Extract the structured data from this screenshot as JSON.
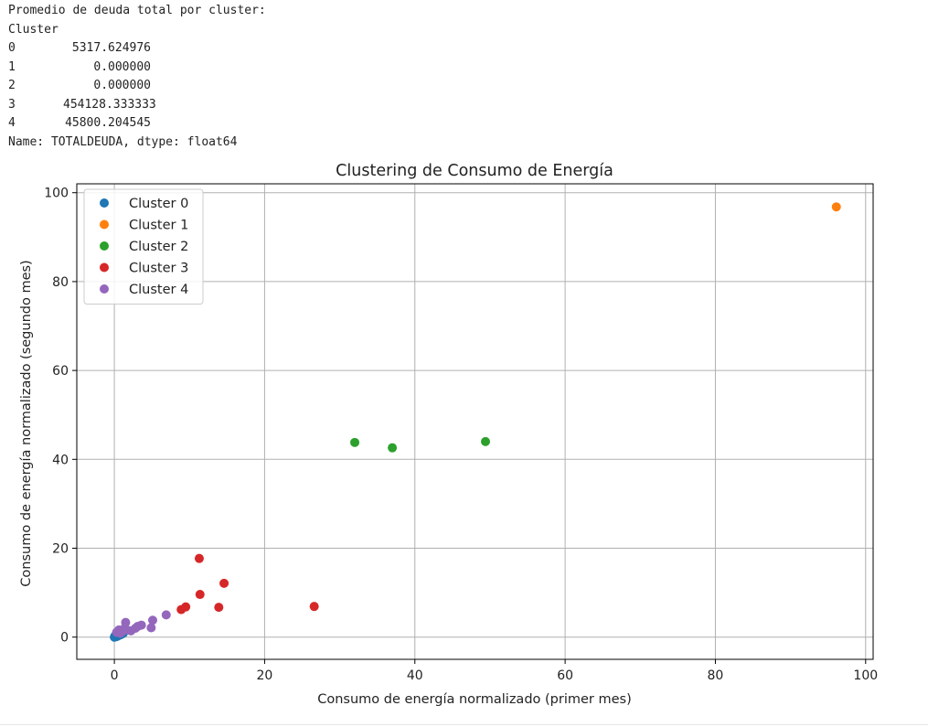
{
  "output": {
    "header": "Promedio de deuda total por cluster:",
    "index_name": "Cluster",
    "rows": [
      {
        "index": "0",
        "value": "5317.624976"
      },
      {
        "index": "1",
        "value": "0.000000"
      },
      {
        "index": "2",
        "value": "0.000000"
      },
      {
        "index": "3",
        "value": "454128.333333"
      },
      {
        "index": "4",
        "value": "45800.204545"
      }
    ],
    "footer": "Name: TOTALDEUDA, dtype: float64"
  },
  "chart_data": {
    "type": "scatter",
    "title": "Clustering de Consumo de Energía",
    "xlabel": "Consumo de energía normalizado (primer mes)",
    "ylabel": "Consumo de energía normalizado (segundo mes)",
    "xlim": [
      -5,
      101
    ],
    "ylim": [
      -5,
      102
    ],
    "xticks": [
      0,
      20,
      40,
      60,
      80,
      100
    ],
    "yticks": [
      0,
      20,
      40,
      60,
      80,
      100
    ],
    "grid": true,
    "legend_position": "top-left",
    "series": [
      {
        "name": "Cluster 0",
        "color": "#1f77b4",
        "points": [
          [
            0,
            0
          ],
          [
            0.1,
            0.3
          ],
          [
            0.2,
            0.1
          ],
          [
            0.3,
            0.6
          ],
          [
            0.4,
            0.2
          ],
          [
            0.5,
            0.8
          ],
          [
            0.6,
            0.4
          ],
          [
            0.8,
            0.5
          ],
          [
            1.0,
            0.7
          ],
          [
            1.2,
            0.9
          ],
          [
            0.05,
            0.05
          ]
        ]
      },
      {
        "name": "Cluster 1",
        "color": "#ff7f0e",
        "points": [
          [
            96.1,
            96.8
          ]
        ]
      },
      {
        "name": "Cluster 2",
        "color": "#2ca02c",
        "points": [
          [
            32.0,
            43.8
          ],
          [
            37.0,
            42.6
          ],
          [
            49.4,
            44.0
          ]
        ]
      },
      {
        "name": "Cluster 3",
        "color": "#d62728",
        "points": [
          [
            11.3,
            17.7
          ],
          [
            14.6,
            12.1
          ],
          [
            11.4,
            9.6
          ],
          [
            9.5,
            6.8
          ],
          [
            8.9,
            6.2
          ],
          [
            13.9,
            6.7
          ],
          [
            26.6,
            6.9
          ]
        ]
      },
      {
        "name": "Cluster 4",
        "color": "#9467bd",
        "points": [
          [
            0.3,
            1.1
          ],
          [
            0.6,
            1.6
          ],
          [
            1.0,
            1.2
          ],
          [
            1.5,
            3.3
          ],
          [
            1.6,
            1.7
          ],
          [
            2.2,
            1.4
          ],
          [
            2.8,
            2.0
          ],
          [
            3.1,
            2.4
          ],
          [
            3.6,
            2.7
          ],
          [
            4.9,
            2.1
          ],
          [
            5.1,
            3.8
          ],
          [
            6.9,
            5.0
          ],
          [
            0.8,
            0.9
          ],
          [
            1.3,
            1.9
          ]
        ]
      }
    ]
  }
}
